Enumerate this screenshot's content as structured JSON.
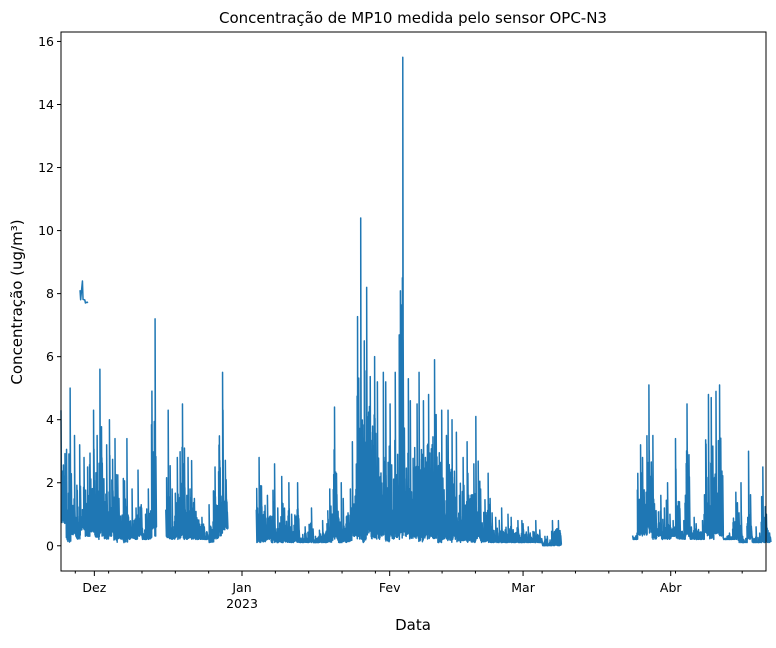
{
  "chart_data": {
    "type": "line",
    "title": "Concentração de MP10 medida pelo sensor OPC-N3",
    "xlabel": "Data",
    "ylabel": "Concentração (ug/m³)",
    "xlim": [
      "2022-11-24",
      "2023-04-21"
    ],
    "ylim": [
      -0.8,
      16.3
    ],
    "grid": false,
    "line_color": "#1f77b4",
    "y_ticks": [
      {
        "value": 0,
        "label": "0"
      },
      {
        "value": 2,
        "label": "2"
      },
      {
        "value": 4,
        "label": "4"
      },
      {
        "value": 6,
        "label": "6"
      },
      {
        "value": 8,
        "label": "8"
      },
      {
        "value": 10,
        "label": "10"
      },
      {
        "value": 12,
        "label": "12"
      },
      {
        "value": 14,
        "label": "14"
      },
      {
        "value": 16,
        "label": "16"
      }
    ],
    "x_ticks": [
      {
        "date": "2022-12-01",
        "label": "Dez",
        "sublabel": ""
      },
      {
        "date": "2023-01-01",
        "label": "Jan",
        "sublabel": "2023"
      },
      {
        "date": "2023-02-01",
        "label": "Fev",
        "sublabel": ""
      },
      {
        "date": "2023-03-01",
        "label": "Mar",
        "sublabel": ""
      },
      {
        "date": "2023-04-01",
        "label": "Abr",
        "sublabel": ""
      }
    ],
    "series": [
      {
        "segments": [
          {
            "start": "2022-11-24",
            "end": "2022-12-13",
            "x": [
              "2022-11-24",
              "2022-11-25",
              "2022-11-26",
              "2022-11-27",
              "2022-11-28",
              "2022-11-29",
              "2022-11-30",
              "2022-12-01",
              "2022-12-02",
              "2022-12-03",
              "2022-12-04",
              "2022-12-05",
              "2022-12-06",
              "2022-12-07",
              "2022-12-08",
              "2022-12-09",
              "2022-12-10",
              "2022-12-11",
              "2022-12-12",
              "2022-12-13"
            ],
            "max": [
              4.3,
              5.0,
              3.5,
              3.2,
              2.8,
              2.5,
              4.3,
              3.5,
              5.6,
              3.2,
              4.0,
              3.4,
              1.5,
              3.4,
              1.8,
              1.2,
              2.4,
              1.0,
              1.8,
              7.2
            ],
            "min": [
              0.7,
              0.1,
              0.3,
              0.2,
              0.5,
              0.3,
              0.4,
              0.2,
              0.3,
              0.2,
              0.3,
              0.1,
              0.2,
              0.1,
              0.2,
              0.2,
              0.3,
              0.2,
              0.2,
              0.3
            ]
          },
          {
            "start": "2022-11-28",
            "end": "2022-11-29",
            "x": [
              "2022-11-28",
              "2022-11-29"
            ],
            "max": [
              8.4,
              7.8
            ],
            "min": [
              7.8,
              7.7
            ]
          },
          {
            "start": "2022-12-16",
            "end": "2022-12-28",
            "x": [
              "2022-12-16",
              "2022-12-17",
              "2022-12-18",
              "2022-12-19",
              "2022-12-20",
              "2022-12-21",
              "2022-12-22",
              "2022-12-23",
              "2022-12-24",
              "2022-12-25",
              "2022-12-26",
              "2022-12-27",
              "2022-12-28"
            ],
            "max": [
              4.3,
              1.8,
              2.8,
              4.5,
              2.8,
              2.7,
              1.5,
              0.9,
              0.6,
              1.3,
              2.5,
              5.5,
              4.3
            ],
            "min": [
              0.2,
              0.2,
              0.2,
              0.2,
              0.2,
              0.2,
              0.2,
              0.2,
              0.2,
              0.1,
              0.2,
              0.3,
              0.5
            ]
          },
          {
            "start": "2023-01-04",
            "end": "2023-01-18",
            "x": [
              "2023-01-04",
              "2023-01-05",
              "2023-01-06",
              "2023-01-07",
              "2023-01-08",
              "2023-01-09",
              "2023-01-10",
              "2023-01-11",
              "2023-01-12",
              "2023-01-13",
              "2023-01-14",
              "2023-01-15",
              "2023-01-16",
              "2023-01-17",
              "2023-01-18"
            ],
            "max": [
              2.8,
              1.9,
              1.6,
              2.6,
              1.2,
              2.2,
              2.0,
              1.0,
              2.0,
              0.5,
              0.6,
              1.2,
              0.3,
              0.8,
              0.7
            ],
            "min": [
              0.1,
              0.1,
              0.2,
              0.1,
              0.1,
              0.1,
              0.1,
              0.1,
              0.1,
              0.1,
              0.1,
              0.1,
              0.1,
              0.1,
              0.1
            ]
          },
          {
            "start": "2023-01-19",
            "end": "2023-03-08",
            "x": [
              "2023-01-19",
              "2023-01-20",
              "2023-01-21",
              "2023-01-22",
              "2023-01-23",
              "2023-01-24",
              "2023-01-25",
              "2023-01-26",
              "2023-01-27",
              "2023-01-28",
              "2023-01-29",
              "2023-01-30",
              "2023-01-31",
              "2023-02-01",
              "2023-02-02",
              "2023-02-03",
              "2023-02-04",
              "2023-02-05",
              "2023-02-06",
              "2023-02-07",
              "2023-02-08",
              "2023-02-09",
              "2023-02-10",
              "2023-02-11",
              "2023-02-12",
              "2023-02-13",
              "2023-02-14",
              "2023-02-15",
              "2023-02-16",
              "2023-02-17",
              "2023-02-18",
              "2023-02-19",
              "2023-02-20",
              "2023-02-21",
              "2023-02-22",
              "2023-02-23",
              "2023-02-24",
              "2023-02-25",
              "2023-02-26",
              "2023-02-27",
              "2023-02-28",
              "2023-03-01",
              "2023-03-02",
              "2023-03-03",
              "2023-03-04",
              "2023-03-05",
              "2023-03-06",
              "2023-03-07",
              "2023-03-08"
            ],
            "max": [
              1.8,
              4.4,
              2.0,
              1.5,
              1.8,
              3.3,
              10.4,
              6.5,
              8.2,
              6.0,
              5.2,
              5.5,
              5.2,
              4.5,
              5.5,
              15.5,
              5.3,
              4.6,
              4.5,
              5.5,
              4.6,
              4.8,
              5.9,
              4.3,
              3.5,
              4.3,
              4.0,
              3.6,
              2.8,
              3.3,
              2.6,
              4.1,
              1.8,
              2.3,
              1.5,
              0.9,
              1.2,
              1.0,
              0.9,
              0.8,
              0.8,
              0.7,
              0.6,
              0.8,
              0.5,
              0.3,
              0.3,
              0.8,
              0.8
            ],
            "min": [
              0.1,
              0.2,
              0.1,
              0.1,
              0.1,
              0.3,
              0.2,
              0.1,
              0.3,
              0.2,
              0.2,
              0.3,
              0.1,
              0.2,
              0.2,
              0.2,
              0.3,
              0.2,
              0.2,
              0.1,
              0.2,
              0.2,
              0.2,
              0.1,
              0.2,
              0.1,
              0.2,
              0.1,
              0.1,
              0.1,
              0.1,
              0.2,
              0.1,
              0.1,
              0.1,
              0.1,
              0.1,
              0.1,
              0.1,
              0.1,
              0.1,
              0.1,
              0.1,
              0.1,
              0.1,
              0.0,
              0.0,
              0.0,
              0.0
            ]
          },
          {
            "start": "2023-03-24",
            "end": "2023-04-21",
            "x": [
              "2023-03-24",
              "2023-03-25",
              "2023-03-26",
              "2023-03-27",
              "2023-03-28",
              "2023-03-29",
              "2023-03-30",
              "2023-03-31",
              "2023-04-01",
              "2023-04-02",
              "2023-04-03",
              "2023-04-04",
              "2023-04-05",
              "2023-04-06",
              "2023-04-07",
              "2023-04-08",
              "2023-04-09",
              "2023-04-10",
              "2023-04-11",
              "2023-04-12",
              "2023-04-13",
              "2023-04-14",
              "2023-04-15",
              "2023-04-16",
              "2023-04-17",
              "2023-04-18",
              "2023-04-19",
              "2023-04-20",
              "2023-04-21"
            ],
            "max": [
              0.4,
              3.2,
              2.8,
              5.1,
              3.5,
              1.6,
              1.2,
              2.0,
              0.8,
              3.4,
              0.8,
              4.5,
              0.9,
              0.7,
              0.8,
              4.8,
              4.7,
              4.9,
              5.1,
              0.3,
              0.4,
              1.7,
              2.0,
              0.3,
              3.0,
              0.6,
              0.4,
              2.5,
              1.0
            ],
            "min": [
              0.2,
              0.3,
              0.3,
              0.4,
              0.2,
              0.3,
              0.2,
              0.2,
              0.3,
              0.2,
              0.2,
              0.3,
              0.2,
              0.2,
              0.2,
              0.3,
              0.2,
              0.3,
              0.3,
              0.2,
              0.2,
              0.2,
              0.1,
              0.1,
              0.2,
              0.1,
              0.1,
              0.1,
              0.1
            ]
          }
        ]
      }
    ]
  }
}
